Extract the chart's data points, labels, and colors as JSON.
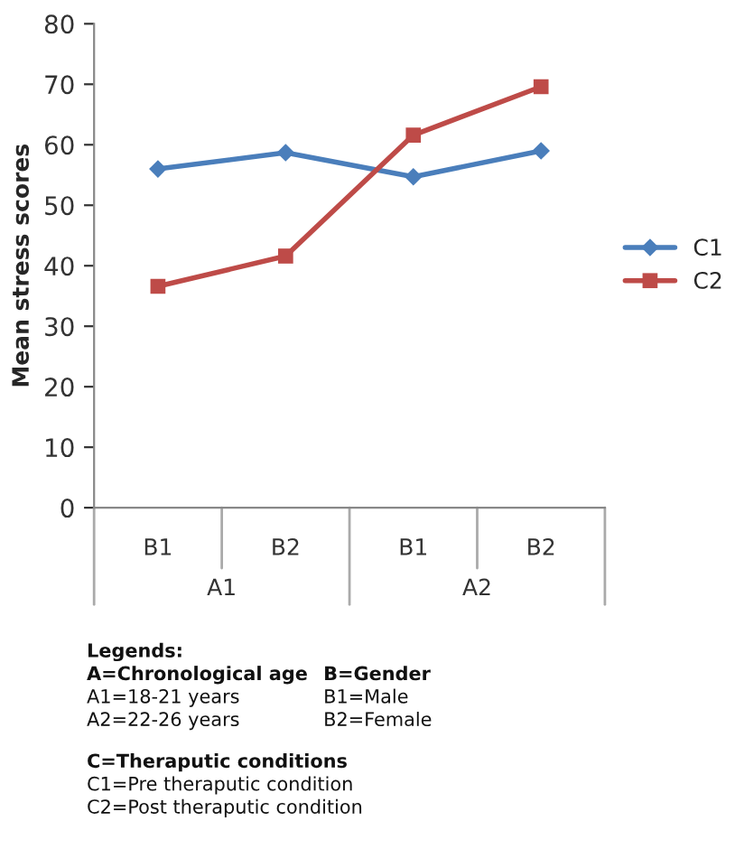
{
  "chart_data": {
    "type": "line",
    "ylabel": "Mean stress scores",
    "categories": [
      "B1",
      "B2",
      "B1",
      "B2"
    ],
    "series": [
      {
        "name": "C1",
        "color": "#4a7ebb",
        "marker": "diamond",
        "values": [
          56,
          58.7,
          54.7,
          59
        ]
      },
      {
        "name": "C2",
        "color": "#be4b48",
        "marker": "square",
        "values": [
          36.6,
          41.6,
          61.6,
          69.6
        ]
      }
    ],
    "ylim": [
      0,
      80
    ],
    "yticks": [
      0,
      10,
      20,
      30,
      40,
      50,
      60,
      70,
      80
    ],
    "grid": false,
    "legend": "right",
    "line_style": "solid",
    "annotations": [
      "A1",
      "A2",
      "Legends:",
      "A=Chronological age",
      "B=Gender",
      "A1=18-21 years",
      "B1=Male",
      "A2=22-26 years",
      "B2=Female",
      "C=Theraputic conditions",
      "C1=Pre theraputic condition",
      "C2=Post theraputic condition"
    ]
  }
}
